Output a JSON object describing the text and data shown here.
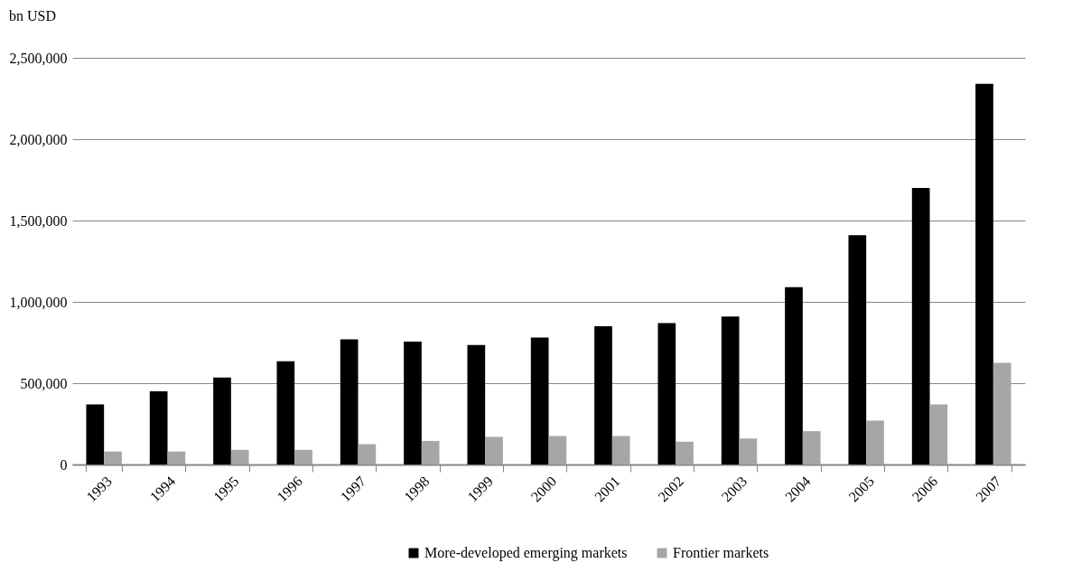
{
  "chart_data": {
    "type": "bar",
    "ylabel": "bn USD",
    "categories": [
      "1993",
      "1994",
      "1995",
      "1996",
      "1997",
      "1998",
      "1999",
      "2000",
      "2001",
      "2002",
      "2003",
      "2004",
      "2005",
      "2006",
      "2007"
    ],
    "series": [
      {
        "name": "More-developed emerging markets",
        "color": "#000000",
        "values": [
          370000,
          450000,
          535000,
          635000,
          770000,
          755000,
          735000,
          780000,
          850000,
          870000,
          910000,
          1090000,
          1410000,
          1700000,
          2340000
        ]
      },
      {
        "name": "Frontier markets",
        "color": "#a6a6a6",
        "values": [
          80000,
          80000,
          90000,
          90000,
          125000,
          145000,
          170000,
          175000,
          175000,
          140000,
          160000,
          205000,
          270000,
          370000,
          625000
        ]
      }
    ],
    "ylim": [
      0,
      2500000
    ],
    "yticks": [
      0,
      {
        "value": 500000,
        "label": "500,000"
      },
      {
        "value": 1000000,
        "label": "1,000,000"
      },
      {
        "value": 1500000,
        "label": "1,500,000"
      },
      {
        "value": 2000000,
        "label": "2,000,000"
      },
      {
        "value": 2500000,
        "label": "2,500,000"
      }
    ],
    "grid": "y",
    "legend": "bottom"
  }
}
